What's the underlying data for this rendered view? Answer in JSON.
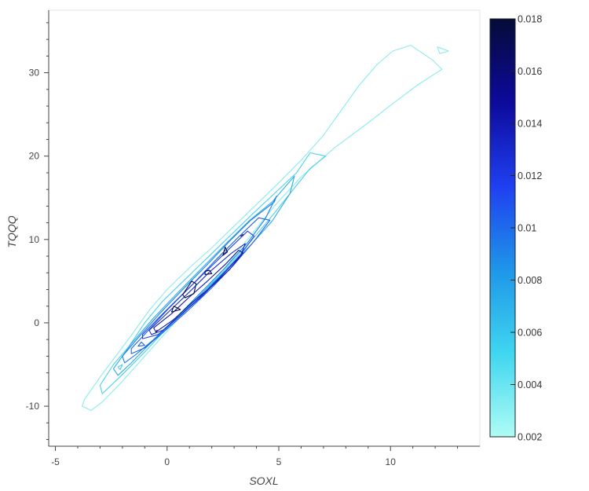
{
  "chart_data": {
    "type": "contour",
    "xlabel": "SOXL",
    "ylabel": "TQQQ",
    "xlim": [
      -5.3,
      14.0
    ],
    "ylim": [
      -14.8,
      37.5
    ],
    "xticks": [
      -5,
      0,
      5,
      10
    ],
    "yticks": [
      -10,
      0,
      10,
      20,
      30
    ],
    "colorbar": {
      "min": 0.002,
      "max": 0.018,
      "ticks": [
        0.002,
        0.004,
        0.006,
        0.008,
        0.01,
        0.012,
        0.014,
        0.016,
        0.018
      ],
      "tick_labels": [
        "0.002",
        "0.004",
        "0.006",
        "0.008",
        "0.01",
        "0.012",
        "0.014",
        "0.016",
        "0.018"
      ],
      "colormap": [
        "#aefcf5",
        "#3fd6f0",
        "#1e96e8",
        "#1f3ff0",
        "#0d0a9c",
        "#050b38"
      ]
    },
    "contour_levels": [
      {
        "level": 0.002,
        "color": "#8cecec",
        "polygons": [
          [
            [
              -3.4,
              -10.5
            ],
            [
              -3.8,
              -10
            ],
            [
              -3.7,
              -9.2
            ],
            [
              -3,
              -6.5
            ],
            [
              -2.3,
              -4
            ],
            [
              -1.6,
              -1.5
            ],
            [
              -0.8,
              1.5
            ],
            [
              0,
              4
            ],
            [
              1,
              6.6
            ],
            [
              2,
              9
            ],
            [
              3,
              11.6
            ],
            [
              4,
              14.2
            ],
            [
              5,
              16.8
            ],
            [
              6,
              19.5
            ],
            [
              7,
              22.5
            ],
            [
              7.8,
              25.5
            ],
            [
              8.6,
              28.5
            ],
            [
              9.4,
              31
            ],
            [
              10.1,
              32.6
            ],
            [
              10.9,
              33.3
            ],
            [
              11.9,
              31.5
            ],
            [
              12.3,
              30.4
            ],
            [
              11.2,
              28.5
            ],
            [
              10.2,
              26.5
            ],
            [
              9,
              24
            ],
            [
              7.5,
              21
            ],
            [
              6,
              17.5
            ],
            [
              4.8,
              14
            ],
            [
              3.6,
              10
            ],
            [
              2.4,
              6
            ],
            [
              1.2,
              2.5
            ],
            [
              0,
              -1
            ],
            [
              -1,
              -4
            ],
            [
              -2,
              -7
            ],
            [
              -2.9,
              -9.5
            ]
          ],
          [
            [
              12.1,
              33.1
            ],
            [
              12.6,
              32.6
            ],
            [
              12.2,
              32.3
            ]
          ]
        ]
      },
      {
        "level": 0.004,
        "color": "#47d2ee",
        "polygons": [
          [
            [
              -2.9,
              -8.5
            ],
            [
              -3,
              -7.5
            ],
            [
              -2.4,
              -5
            ],
            [
              -1.7,
              -2.8
            ],
            [
              -1,
              0
            ],
            [
              -0.2,
              2.6
            ],
            [
              0.8,
              5.2
            ],
            [
              1.8,
              7.8
            ],
            [
              2.8,
              10.4
            ],
            [
              3.8,
              13
            ],
            [
              4.8,
              15.5
            ],
            [
              5.8,
              18
            ],
            [
              6.4,
              20.4
            ],
            [
              7.1,
              20
            ],
            [
              6.4,
              18.5
            ],
            [
              5.5,
              15.5
            ],
            [
              4.6,
              12.5
            ],
            [
              3.5,
              9
            ],
            [
              2.4,
              5.8
            ],
            [
              1.2,
              2.6
            ],
            [
              0,
              -0.6
            ],
            [
              -1,
              -3.5
            ],
            [
              -2,
              -6.2
            ]
          ],
          [
            [
              -2.1,
              -5.6
            ],
            [
              -2.2,
              -5.3
            ],
            [
              -2,
              -5
            ]
          ]
        ]
      },
      {
        "level": 0.006,
        "color": "#2aace6",
        "polygons": [
          [
            [
              -2.2,
              -6.3
            ],
            [
              -2.4,
              -5.5
            ],
            [
              -1.6,
              -2.5
            ],
            [
              -0.6,
              0.6
            ],
            [
              0.4,
              3.4
            ],
            [
              1.5,
              6.4
            ],
            [
              2.6,
              9.4
            ],
            [
              3.7,
              12.3
            ],
            [
              4.7,
              14.5
            ],
            [
              5.7,
              17.6
            ],
            [
              5.5,
              15.5
            ],
            [
              4.7,
              12.2
            ],
            [
              3.7,
              9.2
            ],
            [
              2.6,
              6.2
            ],
            [
              1.5,
              3.4
            ],
            [
              0.3,
              0.2
            ],
            [
              -0.8,
              -2.6
            ],
            [
              -1.6,
              -4.8
            ]
          ]
        ]
      },
      {
        "level": 0.008,
        "color": "#1f7fe8",
        "polygons": [
          [
            [
              -1.9,
              -4.8
            ],
            [
              -2,
              -4
            ],
            [
              -1.2,
              -1.5
            ],
            [
              -0.3,
              1.2
            ],
            [
              0.7,
              4
            ],
            [
              1.8,
              7
            ],
            [
              2.8,
              9.8
            ],
            [
              3.7,
              12.2
            ],
            [
              4.8,
              14.5
            ],
            [
              4.9,
              15.2
            ],
            [
              4.4,
              12.5
            ],
            [
              3.6,
              9.6
            ],
            [
              2.6,
              6.6
            ],
            [
              1.5,
              3.6
            ],
            [
              0.4,
              0.6
            ],
            [
              -0.6,
              -2
            ],
            [
              -1.4,
              -3.8
            ]
          ]
        ]
      },
      {
        "level": 0.01,
        "color": "#2060ea",
        "polygons": [
          [
            [
              -1.6,
              -3.7
            ],
            [
              -1.6,
              -3.1
            ],
            [
              -0.8,
              -0.8
            ],
            [
              0.1,
              1.8
            ],
            [
              1.1,
              4.5
            ],
            [
              2.2,
              7.6
            ],
            [
              3.2,
              10.3
            ],
            [
              4.1,
              12.6
            ],
            [
              4.6,
              12.3
            ],
            [
              3.9,
              9.8
            ],
            [
              3,
              7
            ],
            [
              2,
              4.2
            ],
            [
              0.9,
              1.4
            ],
            [
              -0.2,
              -1.2
            ],
            [
              -1,
              -3
            ]
          ],
          [
            [
              -1.3,
              -2.8
            ],
            [
              -1.15,
              -2.3
            ],
            [
              -1.0,
              -2.7
            ]
          ]
        ]
      },
      {
        "level": 0.012,
        "color": "#2047e6",
        "polygons": [
          [
            [
              -1.1,
              -1.9
            ],
            [
              -1.1,
              -1.4
            ],
            [
              -0.3,
              0.8
            ],
            [
              0.6,
              3.2
            ],
            [
              1.6,
              5.8
            ],
            [
              2.6,
              8.4
            ],
            [
              3.6,
              11
            ],
            [
              3.9,
              10.4
            ],
            [
              3.3,
              8.2
            ],
            [
              2.4,
              5.6
            ],
            [
              1.4,
              2.9
            ],
            [
              0.4,
              0.4
            ],
            [
              -0.4,
              -1.4
            ]
          ]
        ]
      },
      {
        "level": 0.014,
        "color": "#1830cc",
        "polygons": [
          [
            [
              -0.7,
              -1.4
            ],
            [
              -0.8,
              -0.9
            ],
            [
              0.1,
              1.4
            ],
            [
              1.0,
              3.7
            ],
            [
              1.9,
              6.1
            ],
            [
              2.9,
              8.4
            ],
            [
              3.5,
              9.5
            ],
            [
              3.3,
              8.1
            ],
            [
              2.5,
              5.8
            ],
            [
              1.6,
              3.3
            ],
            [
              0.6,
              0.9
            ],
            [
              -0.2,
              -0.9
            ]
          ]
        ]
      },
      {
        "level": 0.016,
        "color": "#141a9a",
        "polygons": [
          [
            [
              -0.5,
              -1.1
            ],
            [
              -0.6,
              -0.6
            ],
            [
              0.2,
              1.1
            ],
            [
              1.0,
              3.1
            ],
            [
              1.8,
              5.0
            ],
            [
              2.6,
              7.0
            ],
            [
              3.2,
              8.7
            ],
            [
              3.4,
              8.4
            ],
            [
              2.8,
              6.4
            ],
            [
              2.0,
              4.4
            ],
            [
              1.1,
              2.4
            ],
            [
              0.3,
              0.4
            ]
          ]
        ]
      },
      {
        "level": 0.018,
        "color": "#0a0c45",
        "polygons": [
          [
            [
              0.2,
              1.3
            ],
            [
              0.3,
              2.0
            ],
            [
              0.6,
              1.6
            ]
          ],
          [
            [
              0.8,
              3.0
            ],
            [
              0.7,
              3.4
            ],
            [
              1.1,
              5.0
            ],
            [
              1.3,
              4.7
            ],
            [
              1.2,
              3.5
            ]
          ],
          [
            [
              1.7,
              5.8
            ],
            [
              1.7,
              6.2
            ],
            [
              1.9,
              6.3
            ],
            [
              2.0,
              5.9
            ]
          ],
          [
            [
              2.5,
              8.1
            ],
            [
              2.6,
              9.1
            ],
            [
              2.7,
              8.5
            ]
          ],
          [
            [
              3.3,
              10.4
            ],
            [
              3.4,
              10.6
            ]
          ],
          [
            [
              -0.45,
              -0.9
            ],
            [
              -0.5,
              -1.1
            ]
          ]
        ]
      }
    ]
  }
}
